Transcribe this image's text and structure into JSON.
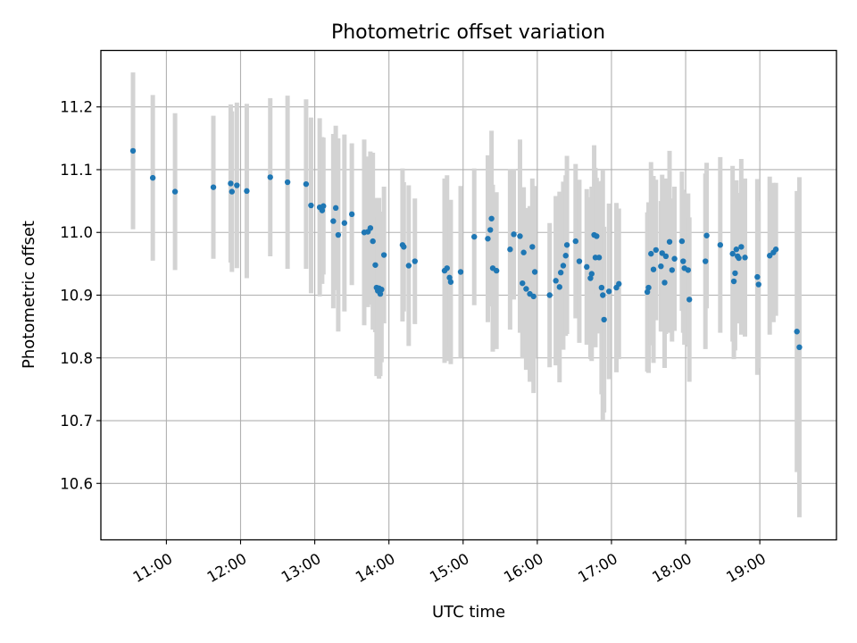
{
  "chart_data": {
    "type": "scatter",
    "title": "Photometric offset variation",
    "xlabel": "UTC time",
    "ylabel": "Photometric offset",
    "x_ticks": [
      "11:00",
      "12:00",
      "13:00",
      "14:00",
      "15:00",
      "16:00",
      "17:00",
      "18:00",
      "19:00"
    ],
    "y_ticks": [
      "10.6",
      "10.7",
      "10.8",
      "10.9",
      "11.0",
      "11.1",
      "11.2"
    ],
    "xlim": [
      "10:07",
      "20:02"
    ],
    "ylim": [
      10.51,
      11.29
    ],
    "grid": true,
    "point_color": "#1f77b4",
    "errorbar_color": "#d3d3d3",
    "series": [
      {
        "x": [
          "10:33",
          "10:49",
          "11:07",
          "11:38",
          "11:52",
          "11:53",
          "11:57",
          "12:05",
          "12:24",
          "12:38",
          "12:53",
          "12:57",
          "13:04",
          "13:06",
          "13:07",
          "13:15",
          "13:17",
          "13:19",
          "13:24",
          "13:30",
          "13:40",
          "13:43",
          "13:45",
          "13:47",
          "13:49",
          "13:50",
          "13:51",
          "13:52",
          "13:53",
          "13:54",
          "13:56",
          "14:11",
          "14:12",
          "14:16",
          "14:21",
          "14:45",
          "14:47",
          "14:49",
          "14:50",
          "14:58",
          "15:09",
          "15:20",
          "15:22",
          "15:23",
          "15:24",
          "15:27",
          "15:38",
          "15:41",
          "15:46",
          "15:48",
          "15:49",
          "15:51",
          "15:54",
          "15:56",
          "15:57",
          "15:58",
          "16:10",
          "16:15",
          "16:18",
          "16:19",
          "16:21",
          "16:23",
          "16:24",
          "16:31",
          "16:34",
          "16:40",
          "16:43",
          "16:44",
          "16:46",
          "16:47",
          "16:48",
          "16:50",
          "16:52",
          "16:53",
          "16:54",
          "16:58",
          "17:04",
          "17:06",
          "17:29",
          "17:30",
          "17:32",
          "17:34",
          "17:36",
          "17:40",
          "17:41",
          "17:43",
          "17:44",
          "17:47",
          "17:49",
          "17:51",
          "17:57",
          "17:58",
          "17:59",
          "18:02",
          "18:03",
          "18:16",
          "18:17",
          "18:28",
          "18:38",
          "18:39",
          "18:40",
          "18:41",
          "18:42",
          "18:43",
          "18:45",
          "18:48",
          "18:58",
          "18:59",
          "19:08",
          "19:11",
          "19:13",
          "19:30",
          "19:32"
        ],
        "y": [
          11.13,
          11.087,
          11.065,
          11.072,
          11.078,
          11.065,
          11.075,
          11.066,
          11.088,
          11.08,
          11.077,
          11.043,
          11.04,
          11.035,
          11.042,
          11.018,
          11.039,
          10.996,
          11.015,
          11.029,
          11.0,
          11.001,
          11.007,
          10.986,
          10.948,
          10.912,
          10.907,
          10.911,
          10.902,
          10.909,
          10.964,
          10.98,
          10.977,
          10.947,
          10.954,
          10.939,
          10.943,
          10.928,
          10.921,
          10.937,
          10.993,
          10.99,
          11.004,
          11.022,
          10.943,
          10.939,
          10.973,
          10.997,
          10.994,
          10.919,
          10.968,
          10.91,
          10.902,
          10.977,
          10.898,
          10.937,
          10.9,
          10.923,
          10.913,
          10.936,
          10.947,
          10.963,
          10.98,
          10.986,
          10.954,
          10.945,
          10.927,
          10.934,
          10.996,
          10.96,
          10.994,
          10.96,
          10.912,
          10.9,
          10.861,
          10.906,
          10.912,
          10.918,
          10.905,
          10.912,
          10.966,
          10.941,
          10.972,
          10.946,
          10.967,
          10.92,
          10.962,
          10.985,
          10.94,
          10.958,
          10.986,
          10.954,
          10.943,
          10.94,
          10.893,
          10.954,
          10.995,
          10.98,
          10.966,
          10.922,
          10.935,
          10.973,
          10.962,
          10.959,
          10.977,
          10.96,
          10.929,
          10.917,
          10.963,
          10.968,
          10.973,
          10.842,
          10.817
        ],
        "yerr": [
          0.125,
          0.132,
          0.125,
          0.114,
          0.126,
          0.128,
          0.132,
          0.139,
          0.126,
          0.138,
          0.135,
          0.14,
          0.142,
          0.117,
          0.109,
          0.139,
          0.131,
          0.154,
          0.141,
          0.113,
          0.148,
          0.12,
          0.122,
          0.141,
          0.107,
          0.141,
          0.118,
          0.144,
          0.131,
          0.116,
          0.109,
          0.122,
          0.103,
          0.128,
          0.1,
          0.147,
          0.148,
          0.111,
          0.131,
          0.137,
          0.109,
          0.133,
          0.087,
          0.14,
          0.133,
          0.125,
          0.128,
          0.104,
          0.154,
          0.12,
          0.104,
          0.129,
          0.14,
          0.109,
          0.154,
          0.137,
          0.115,
          0.135,
          0.152,
          0.114,
          0.134,
          0.128,
          0.142,
          0.123,
          0.13,
          0.124,
          0.129,
          0.139,
          0.143,
          0.143,
          0.093,
          0.121,
          0.17,
          0.2,
          0.148,
          0.14,
          0.135,
          0.12,
          0.127,
          0.136,
          0.146,
          0.149,
          0.112,
          0.104,
          0.125,
          0.136,
          0.124,
          0.145,
          0.114,
          0.115,
          0.111,
          0.114,
          0.122,
          0.122,
          0.131,
          0.14,
          0.116,
          0.14,
          0.14,
          0.124,
          0.123,
          0.11,
          0.101,
          0.104,
          0.14,
          0.126,
          0.156,
          0.133,
          0.126,
          0.111,
          0.106,
          0.224,
          0.271
        ]
      }
    ]
  }
}
